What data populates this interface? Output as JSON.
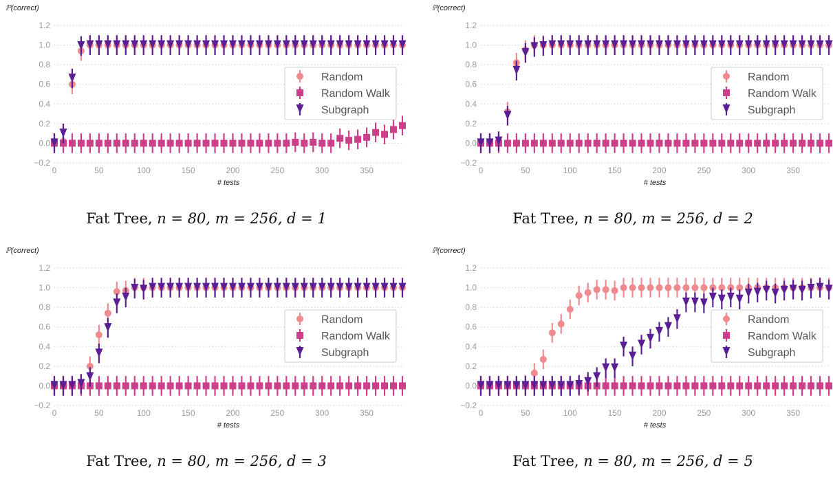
{
  "colors": {
    "random": "#ef8a8f",
    "random_walk": "#cc3f8a",
    "subgraph": "#5b1f95",
    "grid": "#cfcfcf",
    "tick": "#9a9a9a"
  },
  "shared": {
    "ylabel": "ℙ(correct)",
    "xlabel": "# tests",
    "legend": [
      "Random",
      "Random Walk",
      "Subgraph"
    ],
    "xticks": [
      "0",
      "50",
      "100",
      "150",
      "200",
      "250",
      "300",
      "350"
    ],
    "yticks": [
      "−0.2",
      "0.0",
      "0.2",
      "0.4",
      "0.6",
      "0.8",
      "1.0",
      "1.2"
    ]
  },
  "captions": [
    {
      "prefix": "Fat Tree, ",
      "math": "n = 80, m = 256, d = 1"
    },
    {
      "prefix": "Fat Tree, ",
      "math": "n = 80, m = 256, d = 2"
    },
    {
      "prefix": "Fat Tree, ",
      "math": "n = 80, m = 256, d = 3"
    },
    {
      "prefix": "Fat Tree, ",
      "math": "n = 80, m = 256, d = 5"
    }
  ],
  "chart_data": [
    {
      "type": "scatter",
      "xlabel": "# tests",
      "ylabel": "ℙ(correct)",
      "xlim": [
        0,
        390
      ],
      "ylim": [
        -0.2,
        1.2
      ],
      "legend_placement": "center-right",
      "grid": "horizontal dotted",
      "error_bar": 0.1,
      "x": [
        0,
        10,
        20,
        30,
        40,
        50,
        60,
        70,
        80,
        90,
        100,
        110,
        120,
        130,
        140,
        150,
        160,
        170,
        180,
        190,
        200,
        210,
        220,
        230,
        240,
        250,
        260,
        270,
        280,
        290,
        300,
        310,
        320,
        330,
        340,
        350,
        360,
        370,
        380,
        390
      ],
      "series": [
        {
          "name": "Random",
          "values": [
            0,
            0.02,
            0.6,
            0.94,
            1,
            1,
            1,
            1,
            1,
            1,
            1,
            1,
            1,
            1,
            1,
            1,
            1,
            1,
            1,
            1,
            1,
            1,
            1,
            1,
            1,
            1,
            1,
            1,
            1,
            1,
            1,
            1,
            1,
            1,
            1,
            1,
            1,
            1,
            1,
            1
          ]
        },
        {
          "name": "Random Walk",
          "values": [
            0,
            0,
            0,
            0,
            0,
            0,
            0,
            0,
            0,
            0,
            0,
            0,
            0,
            0,
            0,
            0,
            0,
            0,
            0,
            0,
            0,
            0,
            0,
            0,
            0,
            0,
            0,
            0.01,
            0,
            0.01,
            0,
            0,
            0.05,
            0.03,
            0.04,
            0.06,
            0.11,
            0.09,
            0.14,
            0.18
          ]
        },
        {
          "name": "Subgraph",
          "values": [
            0,
            0.1,
            0.66,
            0.99,
            1,
            1,
            1,
            1,
            1,
            1,
            1,
            1,
            1,
            1,
            1,
            1,
            1,
            1,
            1,
            1,
            1,
            1,
            1,
            1,
            1,
            1,
            1,
            1,
            1,
            1,
            1,
            1,
            1,
            1,
            1,
            1,
            1,
            1,
            1,
            1
          ]
        }
      ]
    },
    {
      "type": "scatter",
      "xlabel": "# tests",
      "ylabel": "ℙ(correct)",
      "xlim": [
        0,
        390
      ],
      "ylim": [
        -0.2,
        1.2
      ],
      "legend_placement": "center-right",
      "grid": "horizontal dotted",
      "error_bar": 0.1,
      "x": [
        0,
        10,
        20,
        30,
        40,
        50,
        60,
        70,
        80,
        90,
        100,
        110,
        120,
        130,
        140,
        150,
        160,
        170,
        180,
        190,
        200,
        210,
        220,
        230,
        240,
        250,
        260,
        270,
        280,
        290,
        300,
        310,
        320,
        330,
        340,
        350,
        360,
        370,
        380,
        390
      ],
      "series": [
        {
          "name": "Random",
          "values": [
            0,
            0,
            0.02,
            0.32,
            0.82,
            0.95,
            1,
            1,
            1,
            1,
            1,
            1,
            1,
            1,
            1,
            1,
            1,
            1,
            1,
            1,
            1,
            1,
            1,
            1,
            1,
            1,
            1,
            1,
            1,
            1,
            1,
            1,
            1,
            1,
            1,
            1,
            1,
            1,
            1,
            1
          ]
        },
        {
          "name": "Random Walk",
          "values": [
            0,
            0,
            0,
            0,
            0,
            0,
            0,
            0,
            0,
            0,
            0,
            0,
            0,
            0,
            0,
            0,
            0,
            0,
            0,
            0,
            0,
            0,
            0,
            0,
            0,
            0,
            0,
            0,
            0,
            0,
            0,
            0,
            0,
            0,
            0,
            0,
            0,
            0,
            0,
            0
          ]
        },
        {
          "name": "Subgraph",
          "values": [
            0,
            0,
            0.02,
            0.28,
            0.74,
            0.92,
            0.98,
            0.99,
            1,
            1,
            1,
            1,
            1,
            1,
            1,
            1,
            1,
            1,
            1,
            1,
            1,
            1,
            1,
            1,
            1,
            1,
            1,
            1,
            1,
            1,
            1,
            1,
            1,
            1,
            1,
            1,
            1,
            1,
            1,
            1
          ]
        }
      ]
    },
    {
      "type": "scatter",
      "xlabel": "# tests",
      "ylabel": "ℙ(correct)",
      "xlim": [
        0,
        390
      ],
      "ylim": [
        -0.2,
        1.2
      ],
      "legend_placement": "center-right",
      "grid": "horizontal dotted",
      "error_bar": 0.1,
      "x": [
        0,
        10,
        20,
        30,
        40,
        50,
        60,
        70,
        80,
        90,
        100,
        110,
        120,
        130,
        140,
        150,
        160,
        170,
        180,
        190,
        200,
        210,
        220,
        230,
        240,
        250,
        260,
        270,
        280,
        290,
        300,
        310,
        320,
        330,
        340,
        350,
        360,
        370,
        380,
        390
      ],
      "series": [
        {
          "name": "Random",
          "values": [
            0,
            0,
            0,
            0.02,
            0.2,
            0.52,
            0.74,
            0.96,
            0.97,
            1,
            1,
            1,
            1,
            1,
            1,
            1,
            1,
            1,
            1,
            1,
            1,
            1,
            1,
            1,
            1,
            1,
            1,
            1,
            1,
            1,
            1,
            1,
            1,
            1,
            1,
            1,
            1,
            1,
            1,
            1
          ]
        },
        {
          "name": "Random Walk",
          "values": [
            0,
            0,
            0,
            0,
            0,
            0,
            0,
            0,
            0,
            0,
            0,
            0,
            0,
            0,
            0,
            0,
            0,
            0,
            0,
            0,
            0,
            0,
            0,
            0,
            0,
            0,
            0,
            0,
            0,
            0,
            0,
            0,
            0,
            0,
            0,
            0,
            0,
            0,
            0,
            0
          ]
        },
        {
          "name": "Subgraph",
          "values": [
            0,
            0,
            0,
            0.02,
            0.09,
            0.33,
            0.59,
            0.84,
            0.9,
            0.99,
            0.98,
            1,
            1,
            1,
            1,
            1,
            1,
            1,
            1,
            1,
            1,
            1,
            1,
            1,
            1,
            1,
            1,
            1,
            1,
            1,
            1,
            1,
            1,
            1,
            1,
            1,
            1,
            1,
            1,
            1
          ]
        }
      ]
    },
    {
      "type": "scatter",
      "xlabel": "# tests",
      "ylabel": "ℙ(correct)",
      "xlim": [
        0,
        390
      ],
      "ylim": [
        -0.2,
        1.2
      ],
      "legend_placement": "center-right",
      "grid": "horizontal dotted",
      "error_bar": 0.1,
      "x": [
        0,
        10,
        20,
        30,
        40,
        50,
        60,
        70,
        80,
        90,
        100,
        110,
        120,
        130,
        140,
        150,
        160,
        170,
        180,
        190,
        200,
        210,
        220,
        230,
        240,
        250,
        260,
        270,
        280,
        290,
        300,
        310,
        320,
        330,
        340,
        350,
        360,
        370,
        380,
        390
      ],
      "series": [
        {
          "name": "Random",
          "values": [
            0,
            0,
            0,
            0,
            0,
            0.01,
            0.13,
            0.27,
            0.54,
            0.63,
            0.78,
            0.92,
            0.95,
            0.98,
            0.98,
            0.97,
            1,
            1,
            1,
            1,
            1,
            1,
            1,
            1,
            1,
            1,
            1,
            1,
            1,
            1,
            1,
            1,
            1,
            1,
            1,
            1,
            1,
            1,
            1,
            1
          ]
        },
        {
          "name": "Random Walk",
          "values": [
            0,
            0,
            0,
            0,
            0,
            0,
            0,
            0,
            0,
            0,
            0,
            0,
            0,
            0,
            0,
            0,
            0,
            0,
            0,
            0,
            0,
            0,
            0,
            0,
            0,
            0,
            0,
            0,
            0,
            0,
            0,
            0,
            0,
            0,
            0,
            0,
            0,
            0,
            0,
            0
          ]
        },
        {
          "name": "Subgraph",
          "values": [
            0,
            0,
            0,
            0,
            0,
            0,
            0,
            0,
            0,
            0,
            0,
            0.01,
            0.04,
            0.09,
            0.18,
            0.18,
            0.4,
            0.3,
            0.42,
            0.48,
            0.55,
            0.6,
            0.68,
            0.85,
            0.85,
            0.84,
            0.9,
            0.88,
            0.9,
            0.88,
            0.94,
            0.95,
            0.97,
            0.94,
            0.97,
            0.98,
            0.97,
            0.99,
            1,
            0.98
          ]
        }
      ]
    }
  ]
}
